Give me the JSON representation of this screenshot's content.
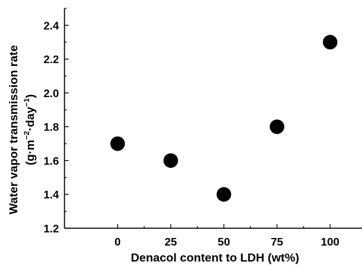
{
  "chart_data": {
    "type": "scatter",
    "xlabel": "Denacol content to LDH (wt%)",
    "ylabel_line1": "Water vapor transmission rate",
    "ylabel_line2_prefix": "(g·m",
    "ylabel_line2_exp1": "−2",
    "ylabel_line2_mid": "·day",
    "ylabel_line2_exp2": "−1",
    "ylabel_line2_suffix": ")",
    "xlim": [
      -25,
      115
    ],
    "ylim": [
      1.2,
      2.5
    ],
    "xticks": [
      0,
      25,
      50,
      75,
      100
    ],
    "yticks": [
      1.2,
      1.4,
      1.6,
      1.8,
      2.0,
      2.2,
      2.4
    ],
    "ytick_labels": [
      "1.2",
      "1.4",
      "1.6",
      "1.8",
      "2.0",
      "2.2",
      "2.4"
    ],
    "grid": false,
    "marker_color": "#000000",
    "series": [
      {
        "x": [
          0,
          25,
          50,
          75,
          100
        ],
        "y": [
          1.7,
          1.6,
          1.4,
          1.8,
          2.3
        ]
      }
    ]
  }
}
